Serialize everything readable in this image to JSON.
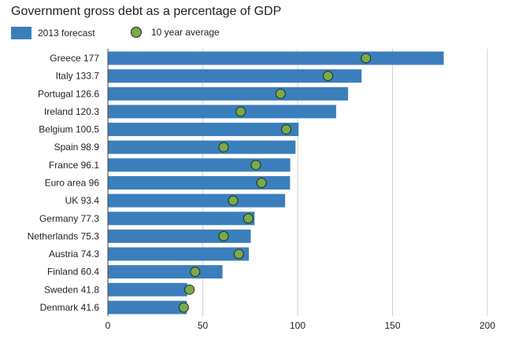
{
  "colors": {
    "bar": "#3a7fbc",
    "marker": "#79aa4e",
    "marker_stroke": "#1f2a14",
    "grid": "#d2d2d2",
    "axis": "#444444"
  },
  "chart_data": {
    "type": "bar",
    "orientation": "horizontal",
    "title": "Government gross debt as a percentage of GDP",
    "xlim": [
      0,
      200
    ],
    "xticks": [
      0,
      50,
      100,
      150,
      200
    ],
    "grid": true,
    "legend_position": "top-left",
    "categories": [
      "Greece 177",
      "Italy 133.7",
      "Portugal 126.6",
      "Ireland 120.3",
      "Belgium 100.5",
      "Spain 98.9",
      "France 96.1",
      "Euro area 96",
      "UK 93.4",
      "Germany 77.3",
      "Netherlands 75.3",
      "Austria 74.3",
      "Finland 60.4",
      "Sweden 41.8",
      "Denmark 41.6"
    ],
    "series": [
      {
        "name": "2013 forecast",
        "kind": "bar",
        "values": [
          177,
          133.7,
          126.6,
          120.3,
          100.5,
          98.9,
          96.1,
          96,
          93.4,
          77.3,
          75.3,
          74.3,
          60.4,
          41.8,
          41.6
        ]
      },
      {
        "name": "10 year average",
        "kind": "marker",
        "values": [
          136,
          116,
          91,
          70,
          94,
          61,
          78,
          81,
          66,
          74,
          61,
          69,
          46,
          43,
          40
        ]
      }
    ]
  }
}
